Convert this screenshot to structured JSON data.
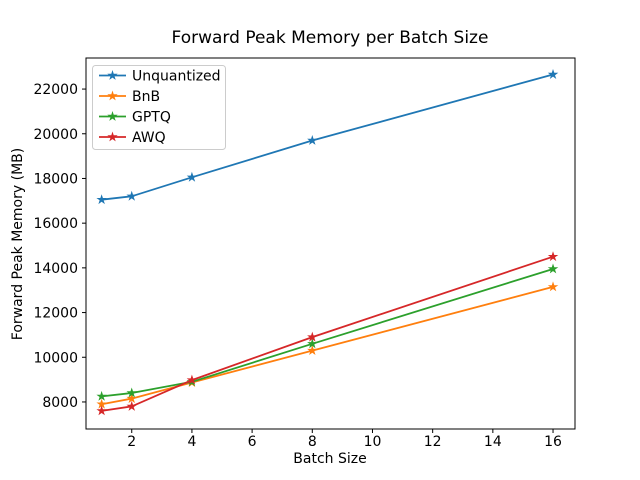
{
  "chart_data": {
    "type": "line",
    "title": "Forward Peak Memory per Batch Size",
    "xlabel": "Batch Size",
    "ylabel": "Forward Peak Memory (MB)",
    "x": [
      1,
      2,
      4,
      8,
      16
    ],
    "series": [
      {
        "name": "Unquantized",
        "color": "#1f77b4",
        "values": [
          17050,
          17200,
          18050,
          19700,
          22650
        ]
      },
      {
        "name": "BnB",
        "color": "#ff7f0e",
        "values": [
          7900,
          8150,
          8870,
          10300,
          13150
        ]
      },
      {
        "name": "GPTQ",
        "color": "#2ca02c",
        "values": [
          8250,
          8400,
          8900,
          10600,
          13950
        ]
      },
      {
        "name": "AWQ",
        "color": "#d62728",
        "values": [
          7600,
          7800,
          8980,
          10900,
          14500
        ]
      }
    ],
    "marker": "star",
    "xticks": [
      2,
      4,
      6,
      8,
      10,
      12,
      14,
      16
    ],
    "yticks": [
      8000,
      10000,
      12000,
      14000,
      16000,
      18000,
      20000,
      22000
    ],
    "xlim": [
      0.48,
      16.73
    ],
    "ylim": [
      6790,
      23390
    ],
    "legend_position": "upper left",
    "grid": false,
    "background": "#ffffff",
    "axis_color": "#000000",
    "legend_border_color": "#cccccc"
  }
}
